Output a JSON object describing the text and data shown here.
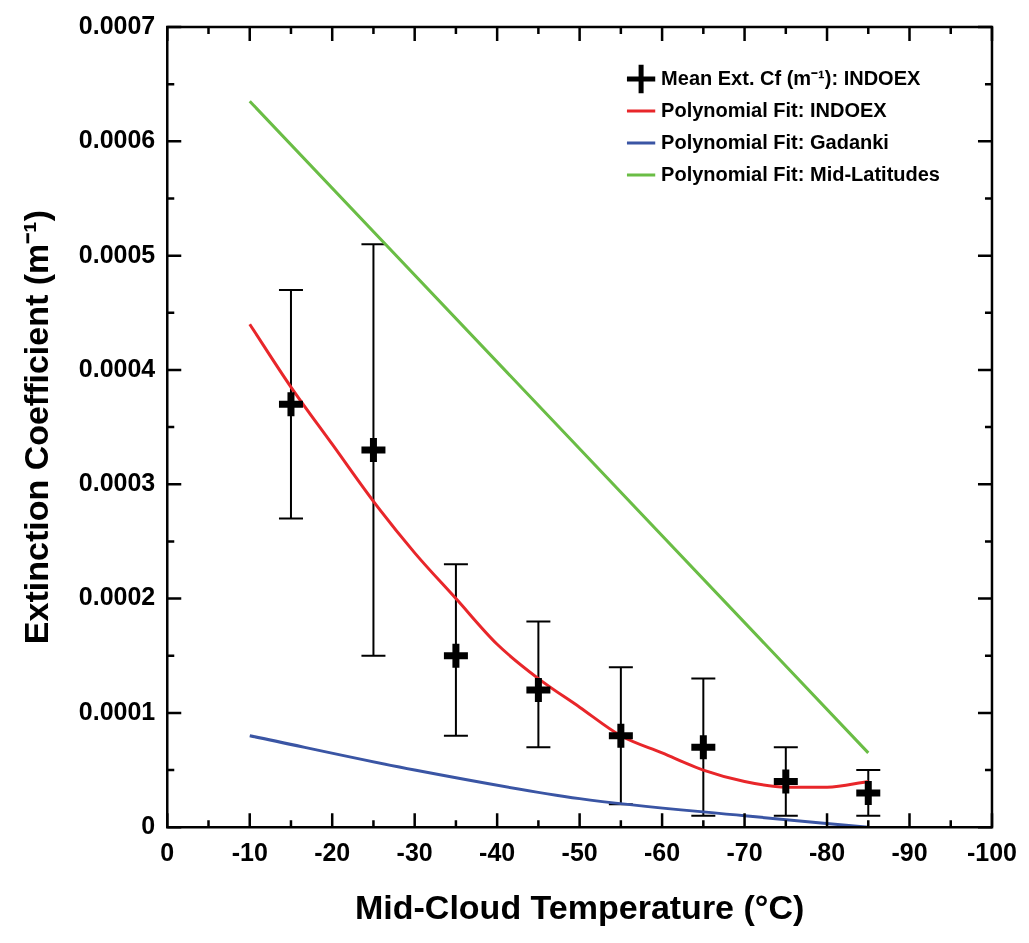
{
  "chart_data": {
    "type": "scatter",
    "xlabel": "Mid-Cloud Temperature (°C)",
    "ylabel": "Extinction Coefficient (m⁻¹)",
    "xlim": [
      0,
      -100
    ],
    "xticks": [
      0,
      {
        "value": -5,
        "label": null
      },
      -10,
      {
        "value": -15,
        "label": null
      },
      -20,
      {
        "value": -25,
        "label": null
      },
      -30,
      {
        "value": -35,
        "label": null
      },
      -40,
      {
        "value": -45,
        "label": null
      },
      -50,
      {
        "value": -55,
        "label": null
      },
      -60,
      {
        "value": -65,
        "label": null
      },
      -70,
      {
        "value": -75,
        "label": null
      },
      -80,
      {
        "value": -85,
        "label": null
      },
      -90,
      {
        "value": -95,
        "label": null
      },
      -100
    ],
    "ylim": [
      0,
      0.0007
    ],
    "yticks": [
      0,
      {
        "value": 5e-05,
        "label": null
      },
      0.0001,
      {
        "value": 0.00015,
        "label": null
      },
      0.0002,
      {
        "value": 0.00025,
        "label": null
      },
      0.0003,
      {
        "value": 0.00035,
        "label": null
      },
      0.0004,
      {
        "value": 0.00045,
        "label": null
      },
      0.0005,
      {
        "value": 0.00055,
        "label": null
      },
      0.0006,
      {
        "value": 0.00065,
        "label": null
      },
      0.0007
    ],
    "grid": false,
    "legend": "top right",
    "series": [
      {
        "name": "Mean Ext. Cf (m⁻¹): INDOEX",
        "marker": "cross",
        "color": "#000000",
        "x": [
          -15,
          -25,
          -35,
          -45,
          -55,
          -65,
          -75,
          -85
        ],
        "values": [
          0.00037,
          0.00033,
          0.00015,
          0.00012,
          8e-05,
          7e-05,
          4e-05,
          3e-05
        ],
        "errors": [
          [
            0.00027,
            0.00047
          ],
          [
            0.00015,
            0.00051
          ],
          [
            8e-05,
            0.00023
          ],
          [
            7e-05,
            0.00018
          ],
          [
            2e-05,
            0.00014
          ],
          [
            1e-05,
            0.00013
          ],
          [
            1e-05,
            7e-05
          ],
          [
            1e-05,
            5e-05
          ]
        ]
      },
      {
        "name": "Polynomial Fit: INDOEX",
        "type": "line",
        "marker": "none",
        "color": "#e8262a",
        "x": [
          -10,
          -15,
          -20,
          -25,
          -30,
          -35,
          -40,
          -45,
          -50,
          -55,
          -60,
          -65,
          -70,
          -75,
          -80,
          -85
        ],
        "values": [
          0.00044,
          0.000385,
          0.000335,
          0.000285,
          0.00024,
          0.0002,
          0.00016,
          0.00013,
          0.000105,
          8e-05,
          6.5e-05,
          5e-05,
          4e-05,
          3.5e-05,
          3.5e-05,
          4e-05
        ]
      },
      {
        "name": "Polynomial Fit: Gadanki",
        "type": "line",
        "marker": "none",
        "color": "#3a55a4",
        "x": [
          -10,
          -30,
          -50,
          -70,
          -85
        ],
        "values": [
          8e-05,
          5e-05,
          2.5e-05,
          1e-05,
          0
        ]
      },
      {
        "name": "Polynomial Fit: Mid-Latitudes",
        "type": "line",
        "marker": "none",
        "color": "#6abd45",
        "x": [
          -10,
          -85
        ],
        "values": [
          0.000635,
          6.5e-05
        ]
      }
    ]
  }
}
